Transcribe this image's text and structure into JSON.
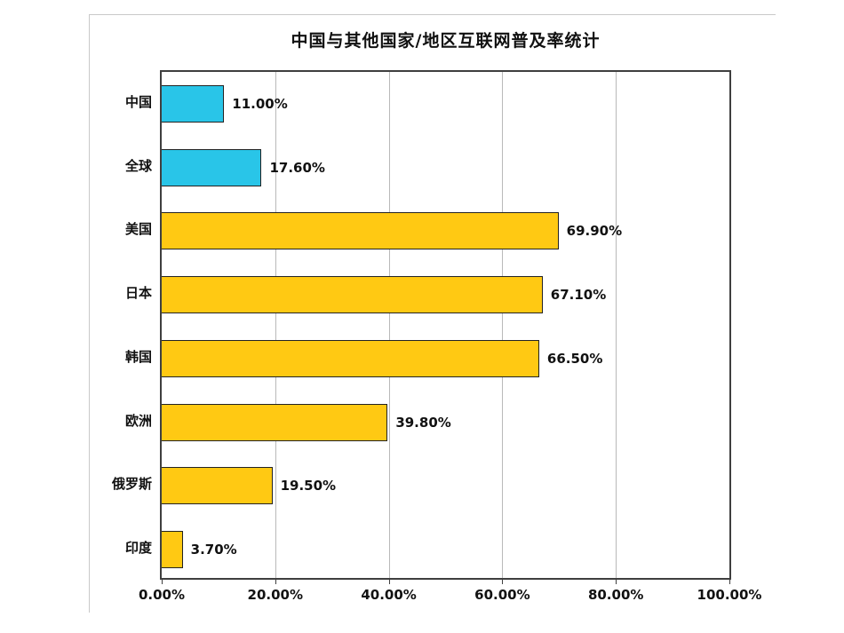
{
  "chart_data": {
    "type": "bar",
    "orientation": "horizontal",
    "title": "中国与其他国家/地区互联网普及率统计",
    "categories": [
      "中国",
      "全球",
      "美国",
      "日本",
      "韩国",
      "欧洲",
      "俄罗斯",
      "印度"
    ],
    "values": [
      11.0,
      17.6,
      69.9,
      67.1,
      66.5,
      39.8,
      19.5,
      3.7
    ],
    "value_labels": [
      "11.00%",
      "17.60%",
      "69.90%",
      "67.10%",
      "66.50%",
      "39.80%",
      "19.50%",
      "3.70%"
    ],
    "bar_colors": [
      "#29C5E8",
      "#29C5E8",
      "#FFC913",
      "#FFC913",
      "#FFC913",
      "#FFC913",
      "#FFC913",
      "#FFC913"
    ],
    "x_ticks": [
      "0.00%",
      "20.00%",
      "40.00%",
      "60.00%",
      "80.00%",
      "100.00%"
    ],
    "x_tick_values": [
      0,
      20,
      40,
      60,
      80,
      100
    ],
    "xlim": [
      0,
      100
    ],
    "grid": true,
    "legend": false,
    "colors": {
      "highlight_bar": "#29C5E8",
      "default_bar": "#FFC913",
      "bar_border": "#222222",
      "plot_border": "#3f3f3f",
      "gridline": "#b9b9b9",
      "panel_border": "#c9c9c9",
      "text": "#111111"
    }
  }
}
